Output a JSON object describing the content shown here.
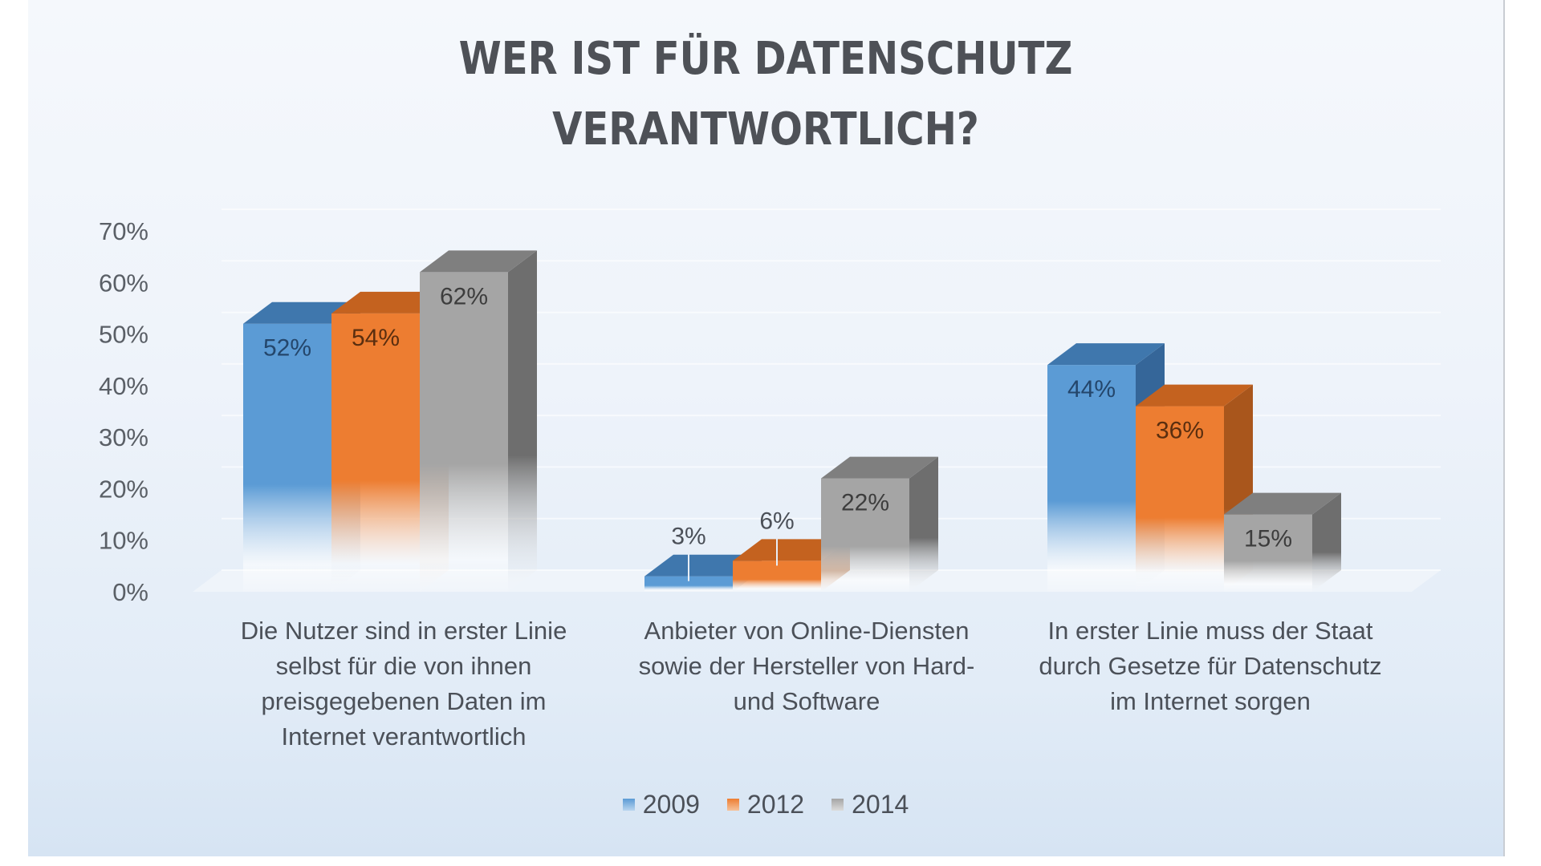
{
  "chart_data": {
    "type": "bar",
    "style": "3d-clustered-column",
    "title_lines": [
      "WER IST FÜR DATENSCHUTZ",
      "VERANTWORTLICH?"
    ],
    "categories": [
      {
        "lines": [
          "Die Nutzer sind in erster Linie",
          "selbst für die von ihnen",
          "preisgegebenen Daten im",
          "Internet verantwortlich"
        ]
      },
      {
        "lines": [
          "Anbieter von Online-Diensten",
          "sowie der Hersteller von Hard-",
          "und Software"
        ]
      },
      {
        "lines": [
          "In erster Linie muss der Staat",
          "durch Gesetze für Datenschutz",
          "im Internet sorgen"
        ]
      }
    ],
    "series": [
      {
        "name": "2009",
        "values": [
          52,
          3,
          44
        ],
        "labels": [
          "52%",
          "3%",
          "44%"
        ],
        "color": "#5b9bd5",
        "top": "#3f77ad",
        "side": "#356699"
      },
      {
        "name": "2012",
        "values": [
          54,
          6,
          36
        ],
        "labels": [
          "54%",
          "6%",
          "36%"
        ],
        "color": "#ed7d31",
        "top": "#c4621f",
        "side": "#a9561c"
      },
      {
        "name": "2014",
        "values": [
          62,
          22,
          15
        ],
        "labels": [
          "62%",
          "22%",
          "15%"
        ],
        "color": "#a5a5a5",
        "top": "#7f7f7f",
        "side": "#6e6e6e"
      }
    ],
    "yticks": [
      "0%",
      "10%",
      "20%",
      "30%",
      "40%",
      "50%",
      "60%",
      "70%"
    ],
    "ylim": [
      0,
      70
    ],
    "xlabel": "",
    "ylabel": "",
    "legend_position": "bottom",
    "grid": true
  }
}
